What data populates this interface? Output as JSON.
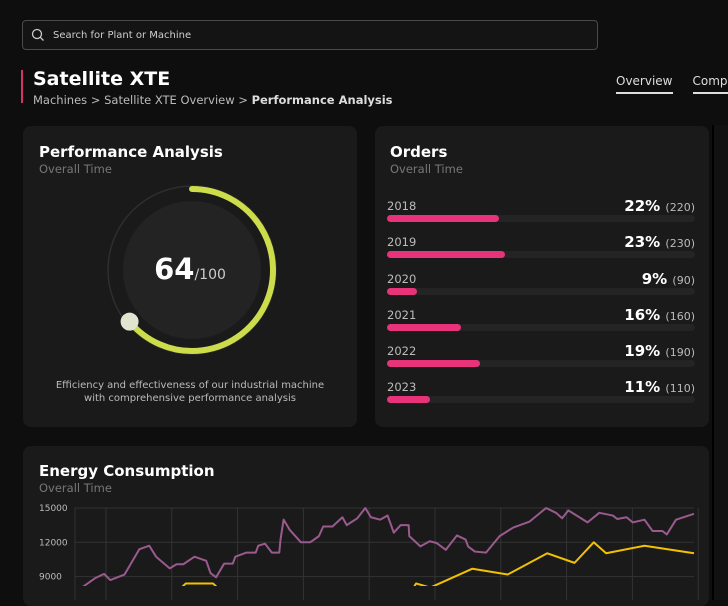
{
  "search": {
    "placeholder": "Search for Plant or Machine",
    "icon": "search-icon"
  },
  "header": {
    "title": "Satellite XTE",
    "accent": "#d6336c",
    "breadcrumb": [
      "Machines",
      "Satellite XTE Overview",
      "Performance Analysis"
    ],
    "separator": ">"
  },
  "tabs": [
    {
      "label": "Overview",
      "active": true
    },
    {
      "label": "Comp",
      "active": false
    }
  ],
  "performance": {
    "title": "Performance Analysis",
    "subtitle": "Overall Time",
    "score": "64",
    "max": "/100",
    "value": 64,
    "color": "#cddc4a",
    "description": "Efficiency and effectiveness of our industrial machine with comprehensive performance analysis"
  },
  "orders": {
    "title": "Orders",
    "subtitle": "Overall Time",
    "bar_color": "#e8337b",
    "items": [
      {
        "year": "2018",
        "pct": "22%",
        "count": "(220)",
        "value": 22
      },
      {
        "year": "2019",
        "pct": "23%",
        "count": "(230)",
        "value": 23
      },
      {
        "year": "2020",
        "pct": "9%",
        "count": "(90)",
        "value": 9
      },
      {
        "year": "2021",
        "pct": "16%",
        "count": "(160)",
        "value": 16
      },
      {
        "year": "2022",
        "pct": "19%",
        "count": "(190)",
        "value": 19
      },
      {
        "year": "2023",
        "pct": "11%",
        "count": "(110)",
        "value": 11
      }
    ]
  },
  "energy": {
    "title": "Energy Consumption",
    "subtitle": "Overall Time"
  },
  "chart_data": {
    "type": "line",
    "title": "Energy Consumption",
    "grid": true,
    "ytick_labels": [
      "15000",
      "12000",
      "9000"
    ],
    "ylim": [
      8000,
      15000
    ],
    "xlim": [
      0,
      100
    ],
    "series": [
      {
        "color": "#9a5a8e",
        "points": [
          [
            1.1,
            8040
          ],
          [
            3.3,
            8880
          ],
          [
            4.7,
            9240
          ],
          [
            5.7,
            8700
          ],
          [
            8,
            9180
          ],
          [
            10.4,
            11400
          ],
          [
            12,
            11700
          ],
          [
            13.1,
            10740
          ],
          [
            15.3,
            9720
          ],
          [
            16.4,
            10080
          ],
          [
            17.5,
            10080
          ],
          [
            19.3,
            10740
          ],
          [
            21.2,
            10380
          ],
          [
            21.9,
            9300
          ],
          [
            22.8,
            8940
          ],
          [
            24.1,
            10140
          ],
          [
            25.5,
            10140
          ],
          [
            25.9,
            10740
          ],
          [
            27.7,
            11100
          ],
          [
            29.2,
            11100
          ],
          [
            29.6,
            11700
          ],
          [
            30.7,
            11880
          ],
          [
            31.8,
            11100
          ],
          [
            33,
            11100
          ],
          [
            33.2,
            12240
          ],
          [
            33.7,
            13980
          ],
          [
            34.7,
            13080
          ],
          [
            36.5,
            12000
          ],
          [
            38,
            12000
          ],
          [
            39.4,
            12540
          ],
          [
            40.1,
            13380
          ],
          [
            41.6,
            13380
          ],
          [
            43.2,
            14190
          ],
          [
            43.9,
            13500
          ],
          [
            45.6,
            14100
          ],
          [
            46.9,
            15000
          ],
          [
            47.8,
            14190
          ],
          [
            49.3,
            13980
          ],
          [
            50.5,
            14340
          ],
          [
            51.5,
            12840
          ],
          [
            52.6,
            13500
          ],
          [
            53.9,
            13500
          ],
          [
            54,
            12540
          ],
          [
            55.8,
            11640
          ],
          [
            57.3,
            12090
          ],
          [
            58.4,
            11940
          ],
          [
            59.9,
            11340
          ],
          [
            61.7,
            12600
          ],
          [
            63.1,
            12240
          ],
          [
            63.5,
            11640
          ],
          [
            64.6,
            11190
          ],
          [
            66.4,
            11100
          ],
          [
            68.6,
            12540
          ],
          [
            70.8,
            13290
          ],
          [
            73.4,
            13800
          ],
          [
            76.1,
            15000
          ],
          [
            77.7,
            14580
          ],
          [
            78.7,
            14100
          ],
          [
            79.7,
            14790
          ],
          [
            82.8,
            13740
          ],
          [
            84.7,
            14580
          ],
          [
            86.9,
            14340
          ],
          [
            87.6,
            14040
          ],
          [
            89.1,
            14190
          ],
          [
            90.1,
            13740
          ],
          [
            92,
            13980
          ],
          [
            93.3,
            12990
          ],
          [
            94.9,
            12990
          ],
          [
            95.6,
            12690
          ],
          [
            97.1,
            13980
          ],
          [
            100,
            14490
          ]
        ]
      },
      {
        "color": "#f2c200",
        "segments": [
          [
            [
              17.2,
              8040
            ],
            [
              17.9,
              8400
            ],
            [
              22.3,
              8400
            ],
            [
              23,
              8040
            ]
          ],
          [
            [
              54.7,
              8040
            ],
            [
              55.1,
              8400
            ],
            [
              57.4,
              8040
            ],
            [
              64.2,
              9690
            ],
            [
              69.9,
              9180
            ],
            [
              76.3,
              11040
            ],
            [
              80.7,
              10200
            ],
            [
              83.8,
              12000
            ],
            [
              85.8,
              11040
            ],
            [
              92,
              11700
            ],
            [
              100,
              11040
            ]
          ]
        ]
      }
    ]
  }
}
